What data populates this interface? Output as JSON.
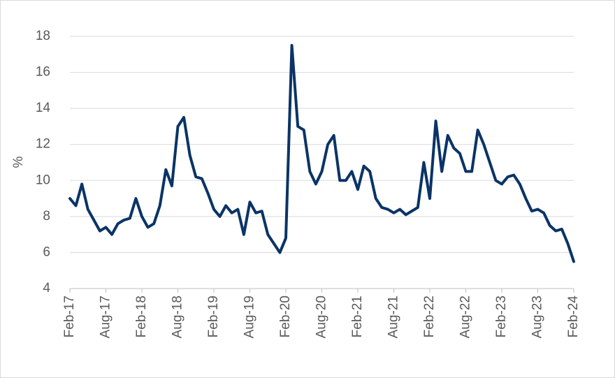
{
  "chart_data": {
    "type": "line",
    "y_label": "%",
    "categories": [
      "Feb-17",
      null,
      null,
      null,
      null,
      null,
      "Aug-17",
      null,
      null,
      null,
      null,
      null,
      "Feb-18",
      null,
      null,
      null,
      null,
      null,
      "Aug-18",
      null,
      null,
      null,
      null,
      null,
      "Feb-19",
      null,
      null,
      null,
      null,
      null,
      "Aug-19",
      null,
      null,
      null,
      null,
      null,
      "Feb-20",
      null,
      null,
      null,
      null,
      null,
      "Aug-20",
      null,
      null,
      null,
      null,
      null,
      "Feb-21",
      null,
      null,
      null,
      null,
      null,
      "Aug-21",
      null,
      null,
      null,
      null,
      null,
      "Feb-22",
      null,
      null,
      null,
      null,
      null,
      "Aug-22",
      null,
      null,
      null,
      null,
      null,
      "Feb-23",
      null,
      null,
      null,
      null,
      null,
      "Aug-23",
      null,
      null,
      null,
      null,
      null,
      "Feb-24"
    ],
    "series": [
      {
        "color": "#0b3466",
        "values": [
          9.0,
          8.6,
          9.8,
          8.4,
          7.8,
          7.2,
          7.4,
          7.0,
          7.6,
          7.8,
          7.9,
          9.0,
          8.0,
          7.4,
          7.6,
          8.6,
          10.6,
          9.7,
          13.0,
          13.5,
          11.4,
          10.2,
          10.1,
          9.3,
          8.4,
          8.0,
          8.6,
          8.2,
          8.4,
          7.0,
          8.8,
          8.2,
          8.3,
          7.0,
          6.5,
          6.0,
          6.8,
          17.5,
          13.0,
          12.8,
          10.5,
          9.8,
          10.5,
          12.0,
          12.5,
          10.0,
          10.0,
          10.5,
          9.5,
          10.8,
          10.5,
          9.0,
          8.5,
          8.4,
          8.2,
          8.4,
          8.1,
          8.3,
          8.5,
          11.0,
          9.0,
          13.3,
          10.5,
          12.5,
          11.8,
          11.5,
          10.5,
          10.5,
          12.8,
          12.0,
          11.0,
          10.0,
          9.8,
          10.2,
          10.3,
          9.8,
          9.0,
          8.3,
          8.4,
          8.2,
          7.5,
          7.2,
          7.3,
          6.5,
          5.5
        ]
      }
    ],
    "ylim": [
      4,
      18
    ],
    "yticks": [
      4,
      6,
      8,
      10,
      12,
      14,
      16,
      18
    ],
    "grid": true
  }
}
